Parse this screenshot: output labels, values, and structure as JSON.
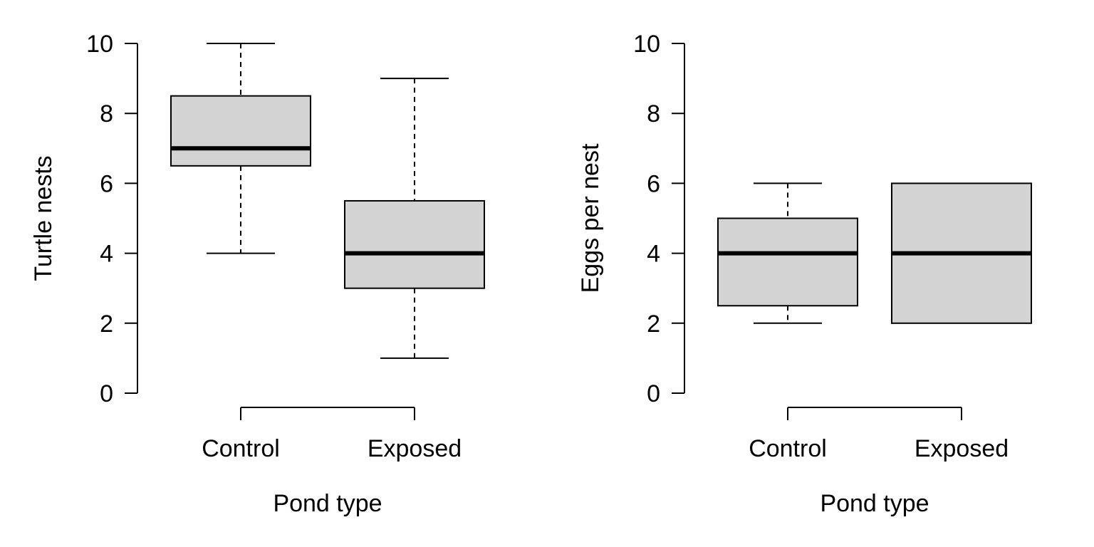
{
  "chart_data": [
    {
      "type": "box",
      "xlabel": "Pond type",
      "ylabel": "Turtle nests",
      "ylim": [
        0,
        10
      ],
      "yticks": [
        "0",
        "2",
        "4",
        "6",
        "8",
        "10"
      ],
      "categories": [
        "Control",
        "Exposed"
      ],
      "boxes": [
        {
          "min": 4,
          "q1": 6.5,
          "median": 7,
          "q3": 8.5,
          "max": 10
        },
        {
          "min": 1,
          "q1": 3,
          "median": 4,
          "q3": 5.5,
          "max": 9
        }
      ]
    },
    {
      "type": "box",
      "xlabel": "Pond type",
      "ylabel": "Eggs per nest",
      "ylim": [
        0,
        10
      ],
      "yticks": [
        "0",
        "2",
        "4",
        "6",
        "8",
        "10"
      ],
      "categories": [
        "Control",
        "Exposed"
      ],
      "boxes": [
        {
          "min": 2,
          "q1": 2.5,
          "median": 4,
          "q3": 5,
          "max": 6
        },
        {
          "min": 2,
          "q1": 2,
          "median": 4,
          "q3": 6,
          "max": 6
        }
      ]
    }
  ]
}
